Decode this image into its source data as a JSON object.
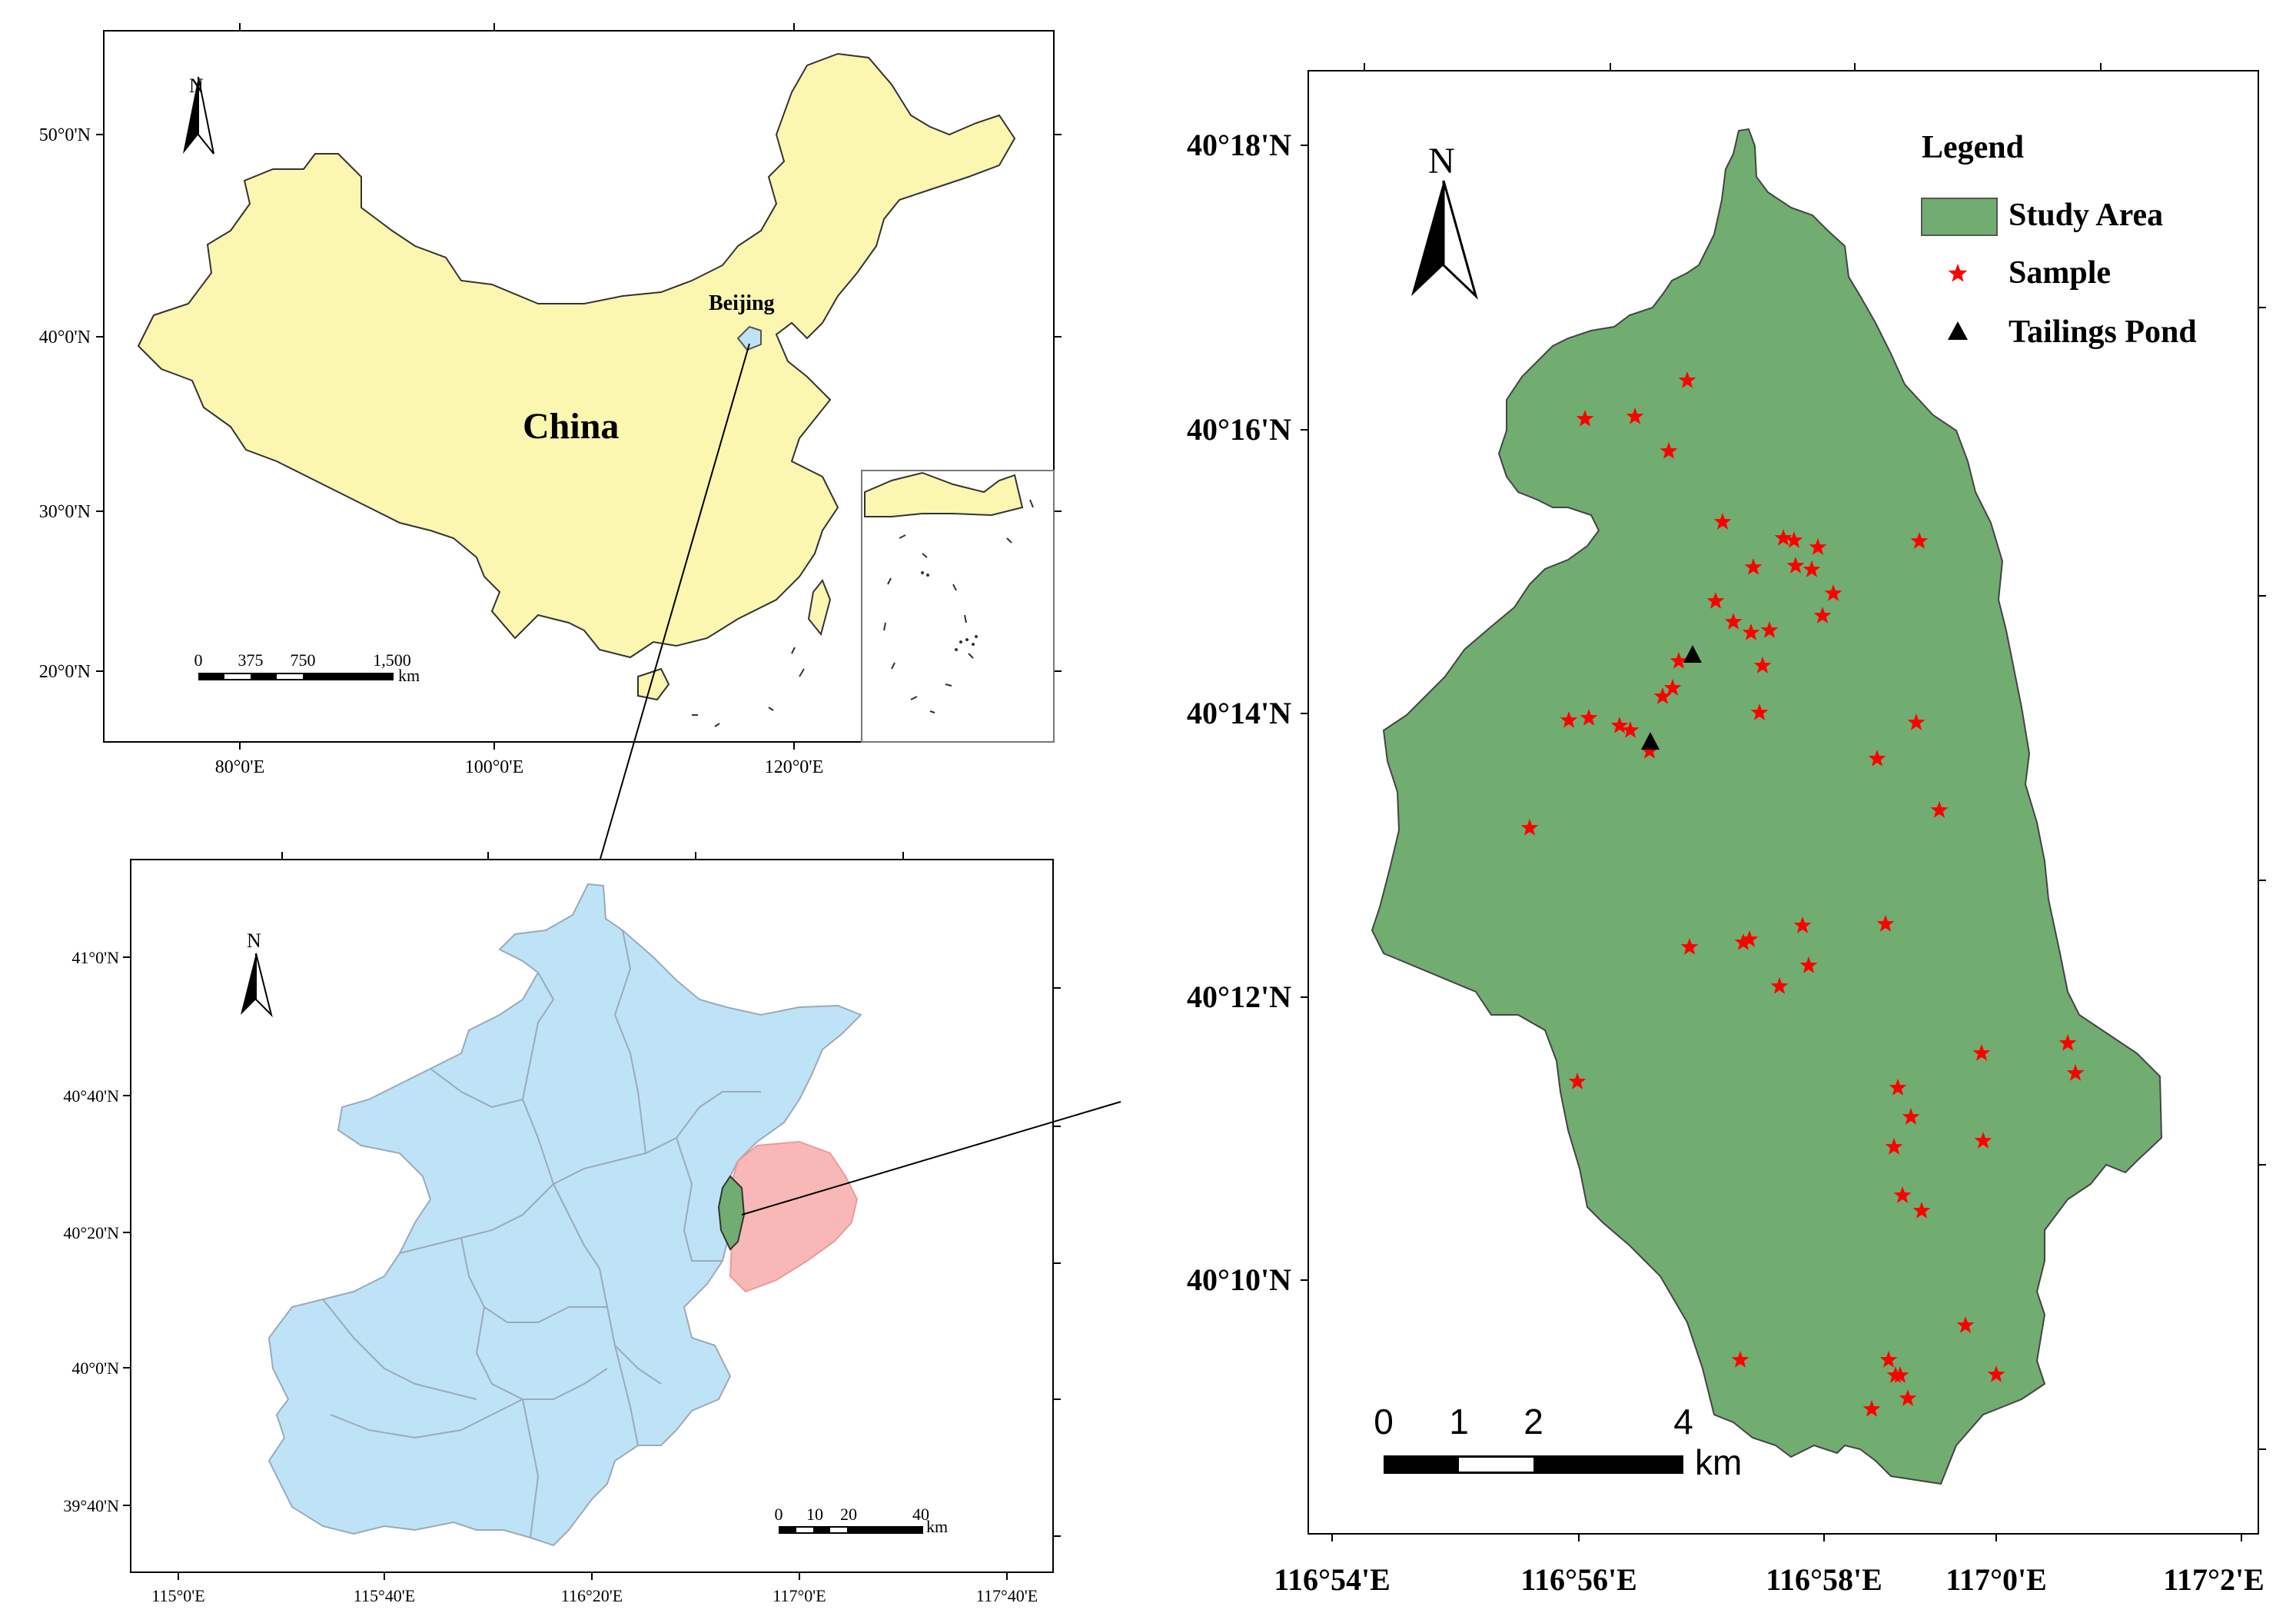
{
  "colors": {
    "china_fill": "#fbf6b0",
    "beijing_fill": "#bfe3f6",
    "pinggu_fill": "#f8b8b8",
    "study_fill": "#71ad70",
    "sample_color": "#ff0000",
    "tailings_color": "#000000",
    "outline": "#555555"
  },
  "icons": {
    "north_arrow": "north-arrow-icon",
    "sample_marker": "star-icon",
    "tailings_marker": "triangle-icon"
  },
  "china_map": {
    "north_label": "N",
    "country_label": "China",
    "city_label": "Beijing",
    "lat_labels": [
      "50°0'N",
      "40°0'N",
      "30°0'N",
      "20°0'N"
    ],
    "lon_labels": [
      "80°0'E",
      "100°0'E",
      "120°0'E"
    ],
    "scale": {
      "ticks": [
        "0",
        "375",
        "750",
        "1,500"
      ],
      "unit": "km"
    }
  },
  "beijing_map": {
    "north_label": "N",
    "lat_labels": [
      "41°0'N",
      "40°40'N",
      "40°20'N",
      "40°0'N",
      "39°40'N"
    ],
    "lon_labels": [
      "115°0'E",
      "115°40'E",
      "116°20'E",
      "117°0'E",
      "117°40'E"
    ],
    "scale": {
      "ticks": [
        "0",
        "10",
        "20",
        "40"
      ],
      "unit": "km"
    }
  },
  "study_map": {
    "north_label": "N",
    "lat_labels": [
      "40°18'N",
      "40°16'N",
      "40°14'N",
      "40°12'N",
      "40°10'N"
    ],
    "lon_labels": [
      "116°54'E",
      "116°56'E",
      "116°58'E",
      "117°0'E",
      "117°2'E"
    ],
    "scale": {
      "ticks": [
        "0",
        "1",
        "2",
        "4"
      ],
      "unit": "km"
    },
    "legend": {
      "title": "Legend",
      "items": [
        {
          "label": "Study Area",
          "symbol": "area"
        },
        {
          "label": "Sample",
          "symbol": "star"
        },
        {
          "label": "Tailings Pond",
          "symbol": "triangle"
        }
      ]
    },
    "samples": [
      [
        2195,
        495
      ],
      [
        2062,
        545
      ],
      [
        2127,
        542
      ],
      [
        2171,
        587
      ],
      [
        2241,
        679
      ],
      [
        2320,
        700
      ],
      [
        2334,
        703
      ],
      [
        2365,
        712
      ],
      [
        2497,
        704
      ],
      [
        2281,
        738
      ],
      [
        2336,
        736
      ],
      [
        2357,
        741
      ],
      [
        2385,
        772
      ],
      [
        2371,
        801
      ],
      [
        2232,
        782
      ],
      [
        2255,
        809
      ],
      [
        2278,
        823
      ],
      [
        2302,
        820
      ],
      [
        2293,
        866
      ],
      [
        2184,
        860
      ],
      [
        2163,
        906
      ],
      [
        2176,
        895
      ],
      [
        2289,
        927
      ],
      [
        2493,
        940
      ],
      [
        2442,
        987
      ],
      [
        2041,
        937
      ],
      [
        2067,
        934
      ],
      [
        2107,
        944
      ],
      [
        2121,
        950
      ],
      [
        2146,
        977
      ],
      [
        1990,
        1077
      ],
      [
        2523,
        1054
      ],
      [
        2345,
        1204
      ],
      [
        2453,
        1202
      ],
      [
        2268,
        1226
      ],
      [
        2276,
        1222
      ],
      [
        2198,
        1232
      ],
      [
        2353,
        1256
      ],
      [
        2315,
        1283
      ],
      [
        2052,
        1407
      ],
      [
        2690,
        1357
      ],
      [
        2700,
        1396
      ],
      [
        2578,
        1370
      ],
      [
        2469,
        1415
      ],
      [
        2486,
        1453
      ],
      [
        2464,
        1492
      ],
      [
        2580,
        1484
      ],
      [
        2475,
        1555
      ],
      [
        2500,
        1575
      ],
      [
        2264,
        1769
      ],
      [
        2557,
        1724
      ],
      [
        2457,
        1769
      ],
      [
        2466,
        1789
      ],
      [
        2472,
        1789
      ],
      [
        2597,
        1788
      ],
      [
        2482,
        1819
      ],
      [
        2435,
        1833
      ]
    ],
    "tailings": [
      [
        2202,
        852
      ],
      [
        2147,
        965
      ]
    ]
  }
}
